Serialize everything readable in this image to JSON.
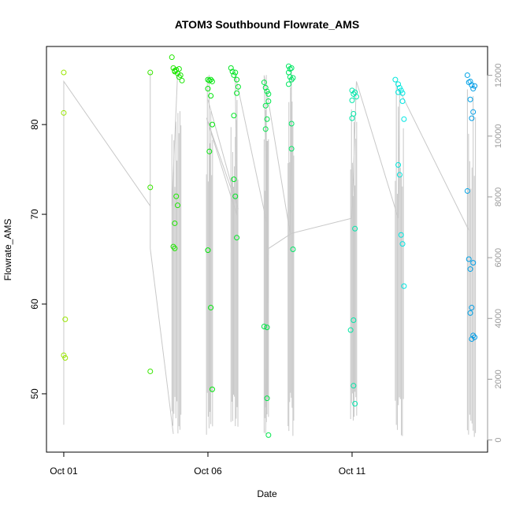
{
  "chart_data": {
    "type": "scatter",
    "title": "ATOM3 Southbound Flowrate_AMS",
    "xlabel": "Date",
    "ylabel": "Flowrate_AMS",
    "x_range_days": [
      -0.6,
      14.7
    ],
    "y_range": [
      43.5,
      88.7
    ],
    "y2_range": [
      -400,
      12950
    ],
    "x_ticks": [
      {
        "day": 0,
        "label": "Oct 01"
      },
      {
        "day": 5,
        "label": "Oct 06"
      },
      {
        "day": 10,
        "label": "Oct 11"
      }
    ],
    "y_ticks": [
      50,
      60,
      70,
      80
    ],
    "y2_ticks": [
      0,
      2000,
      4000,
      6000,
      8000,
      10000,
      12000
    ],
    "grid": false,
    "legend": "none",
    "series": [
      {
        "values": [
          [
            0.0,
            85.8
          ],
          [
            0.0,
            81.3
          ],
          [
            0.05,
            58.3
          ],
          [
            0.0,
            54.3
          ],
          [
            0.05,
            54.0
          ],
          [
            3.0,
            85.8
          ],
          [
            3.0,
            73.0
          ],
          [
            3.0,
            52.5
          ],
          [
            3.75,
            87.5
          ],
          [
            3.8,
            86.3
          ],
          [
            3.85,
            86.0
          ],
          [
            3.9,
            86.1
          ],
          [
            3.95,
            85.7
          ],
          [
            4.0,
            86.2
          ],
          [
            4.05,
            85.5
          ],
          [
            3.85,
            85.9
          ],
          [
            4.0,
            85.3
          ],
          [
            4.1,
            84.9
          ],
          [
            3.9,
            72.0
          ],
          [
            3.95,
            71.0
          ],
          [
            3.85,
            69.0
          ],
          [
            3.8,
            66.4
          ],
          [
            3.85,
            66.2
          ],
          [
            5.0,
            85.0
          ],
          [
            5.05,
            84.9
          ],
          [
            5.1,
            85.0
          ],
          [
            5.15,
            84.8
          ],
          [
            5.0,
            84.0
          ],
          [
            5.1,
            83.2
          ],
          [
            5.15,
            80.0
          ],
          [
            5.05,
            77.0
          ],
          [
            5.0,
            66.0
          ],
          [
            5.1,
            59.6
          ],
          [
            5.15,
            50.5
          ],
          [
            5.8,
            86.3
          ],
          [
            5.85,
            85.9
          ],
          [
            5.9,
            85.5
          ],
          [
            5.95,
            85.8
          ],
          [
            6.0,
            85.0
          ],
          [
            6.05,
            84.2
          ],
          [
            6.0,
            83.5
          ],
          [
            5.9,
            81.0
          ],
          [
            5.9,
            73.9
          ],
          [
            5.95,
            72.0
          ],
          [
            6.0,
            67.4
          ],
          [
            6.95,
            84.7
          ],
          [
            7.0,
            84.1
          ],
          [
            7.05,
            83.7
          ],
          [
            7.1,
            83.4
          ],
          [
            7.0,
            82.1
          ],
          [
            7.05,
            80.6
          ],
          [
            7.1,
            82.6
          ],
          [
            7.0,
            79.5
          ],
          [
            6.95,
            57.5
          ],
          [
            7.05,
            57.4
          ],
          [
            7.05,
            49.5
          ],
          [
            7.1,
            45.4
          ],
          [
            7.8,
            86.5
          ],
          [
            7.85,
            86.2
          ],
          [
            7.9,
            86.3
          ],
          [
            7.8,
            85.8
          ],
          [
            7.85,
            85.3
          ],
          [
            7.9,
            85.0
          ],
          [
            7.95,
            85.2
          ],
          [
            7.8,
            84.5
          ],
          [
            7.9,
            80.1
          ],
          [
            7.9,
            77.3
          ],
          [
            7.95,
            66.1
          ],
          [
            10.0,
            83.8
          ],
          [
            10.05,
            83.4
          ],
          [
            10.1,
            83.6
          ],
          [
            10.15,
            83.1
          ],
          [
            10.0,
            82.7
          ],
          [
            10.05,
            81.2
          ],
          [
            10.0,
            80.7
          ],
          [
            10.05,
            58.2
          ],
          [
            9.95,
            57.1
          ],
          [
            10.1,
            68.4
          ],
          [
            10.05,
            50.9
          ],
          [
            10.1,
            48.9
          ],
          [
            11.5,
            85.0
          ],
          [
            11.6,
            84.5
          ],
          [
            11.65,
            84.1
          ],
          [
            11.7,
            83.8
          ],
          [
            11.75,
            83.5
          ],
          [
            11.6,
            83.6
          ],
          [
            11.75,
            82.6
          ],
          [
            11.8,
            80.6
          ],
          [
            11.6,
            75.5
          ],
          [
            11.65,
            74.4
          ],
          [
            11.7,
            67.7
          ],
          [
            11.75,
            66.7
          ],
          [
            11.8,
            62.0
          ],
          [
            14.0,
            85.5
          ],
          [
            14.05,
            84.7
          ],
          [
            14.1,
            84.8
          ],
          [
            14.15,
            84.4
          ],
          [
            14.2,
            84.0
          ],
          [
            14.25,
            84.3
          ],
          [
            14.1,
            82.8
          ],
          [
            14.2,
            81.4
          ],
          [
            14.15,
            80.7
          ],
          [
            14.0,
            72.6
          ],
          [
            14.05,
            65.0
          ],
          [
            14.1,
            63.9
          ],
          [
            14.2,
            64.6
          ],
          [
            14.15,
            59.6
          ],
          [
            14.1,
            59.0
          ],
          [
            14.2,
            56.5
          ],
          [
            14.25,
            56.3
          ],
          [
            14.15,
            56.1
          ]
        ]
      }
    ]
  }
}
